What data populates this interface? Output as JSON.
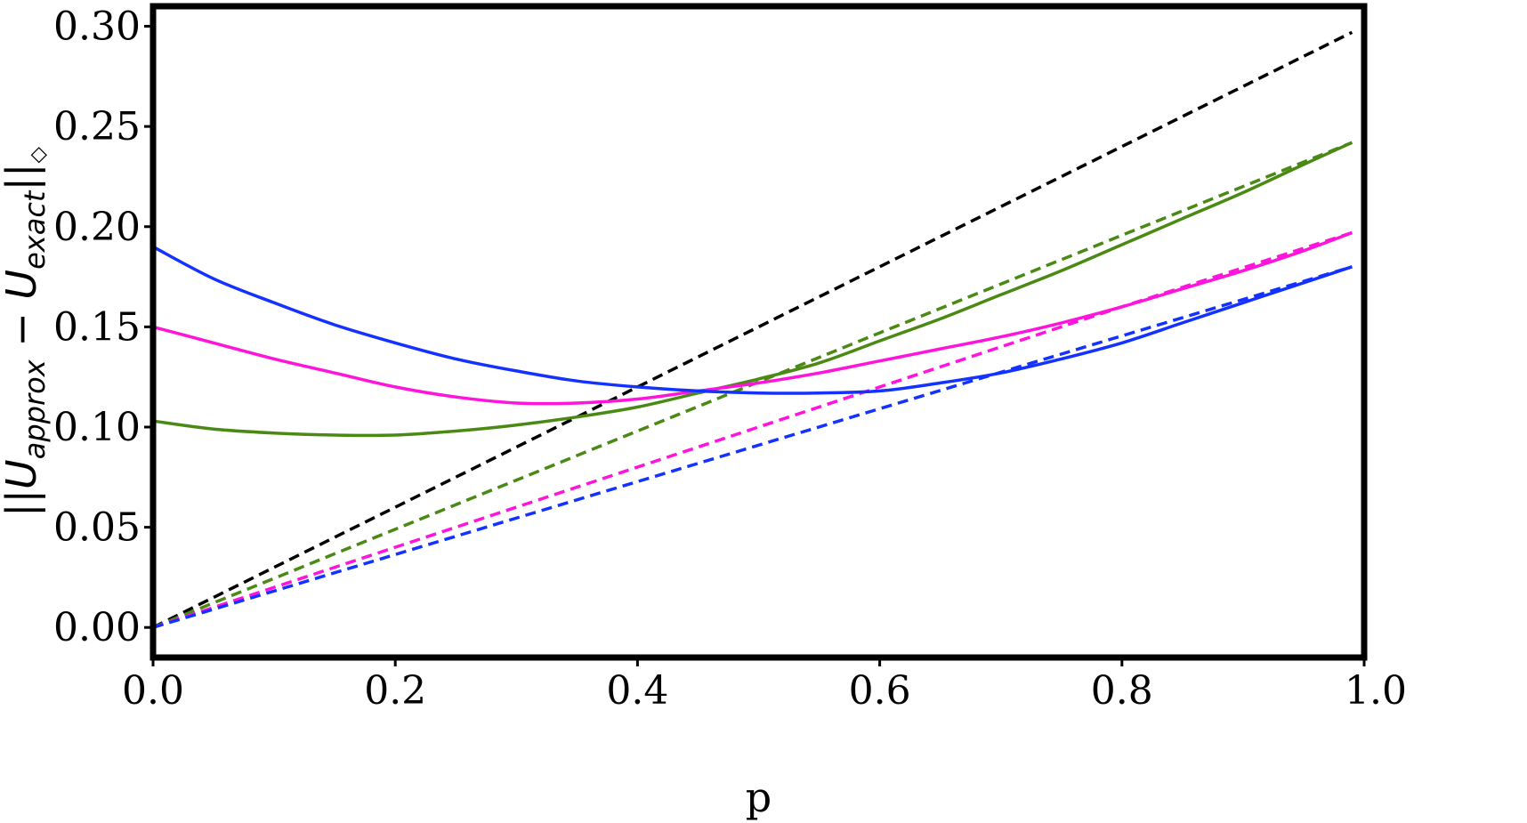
{
  "chart_data": {
    "type": "line",
    "xlabel": "p",
    "ylabel": {
      "prefix": "||",
      "u1": "U",
      "sub1": "approx",
      "minus": " − ",
      "u2": "U",
      "sub2": "exact",
      "suffix": "||",
      "norm_sub": "◇"
    },
    "xlim": [
      0.0,
      1.0
    ],
    "ylim": [
      -0.015,
      0.31
    ],
    "xticks": [
      0.0,
      0.2,
      0.4,
      0.6,
      0.8,
      1.0
    ],
    "xtick_labels": [
      "0.0",
      "0.2",
      "0.4",
      "0.6",
      "0.8",
      "1.0"
    ],
    "yticks": [
      0.0,
      0.05,
      0.1,
      0.15,
      0.2,
      0.25,
      0.3
    ],
    "ytick_labels": [
      "0.00",
      "0.05",
      "0.10",
      "0.15",
      "0.20",
      "0.25",
      "0.30"
    ],
    "grid": false,
    "colors": {
      "black": "#000000",
      "green": "#4a8a14",
      "magenta": "#ff14dc",
      "blue": "#1432ff"
    },
    "series": [
      {
        "color": "black",
        "style": "dashed",
        "x": [
          0.0,
          0.99
        ],
        "y": [
          0.0,
          0.297
        ]
      },
      {
        "color": "green",
        "style": "dashed",
        "x": [
          0.0,
          0.6,
          0.99
        ],
        "y": [
          0.0,
          0.147,
          0.242
        ]
      },
      {
        "color": "magenta",
        "style": "dashed",
        "x": [
          0.0,
          0.8,
          0.99
        ],
        "y": [
          0.0,
          0.16,
          0.197
        ]
      },
      {
        "color": "blue",
        "style": "dashed",
        "x": [
          0.0,
          0.72,
          0.99
        ],
        "y": [
          0.0,
          0.131,
          0.18
        ]
      },
      {
        "color": "green",
        "style": "solid",
        "x": [
          0.0,
          0.05,
          0.1,
          0.15,
          0.2,
          0.25,
          0.3,
          0.35,
          0.4,
          0.45,
          0.5,
          0.55,
          0.6,
          0.65,
          0.7,
          0.75,
          0.8,
          0.85,
          0.9,
          0.95,
          0.99
        ],
        "y": [
          0.103,
          0.099,
          0.097,
          0.096,
          0.096,
          0.098,
          0.101,
          0.105,
          0.11,
          0.117,
          0.124,
          0.132,
          0.143,
          0.154,
          0.166,
          0.178,
          0.191,
          0.204,
          0.217,
          0.231,
          0.242
        ]
      },
      {
        "color": "magenta",
        "style": "solid",
        "x": [
          0.0,
          0.05,
          0.1,
          0.15,
          0.2,
          0.25,
          0.3,
          0.35,
          0.4,
          0.45,
          0.5,
          0.55,
          0.6,
          0.65,
          0.7,
          0.75,
          0.8,
          0.85,
          0.9,
          0.95,
          0.99
        ],
        "y": [
          0.15,
          0.142,
          0.134,
          0.127,
          0.12,
          0.115,
          0.112,
          0.112,
          0.114,
          0.118,
          0.122,
          0.127,
          0.133,
          0.139,
          0.145,
          0.152,
          0.16,
          0.169,
          0.178,
          0.188,
          0.197
        ]
      },
      {
        "color": "blue",
        "style": "solid",
        "x": [
          0.0,
          0.05,
          0.1,
          0.15,
          0.2,
          0.25,
          0.3,
          0.35,
          0.4,
          0.45,
          0.5,
          0.55,
          0.6,
          0.65,
          0.7,
          0.75,
          0.8,
          0.85,
          0.9,
          0.95,
          0.99
        ],
        "y": [
          0.19,
          0.174,
          0.162,
          0.151,
          0.142,
          0.134,
          0.128,
          0.123,
          0.12,
          0.118,
          0.117,
          0.117,
          0.118,
          0.122,
          0.127,
          0.134,
          0.142,
          0.152,
          0.162,
          0.172,
          0.18
        ]
      }
    ]
  }
}
